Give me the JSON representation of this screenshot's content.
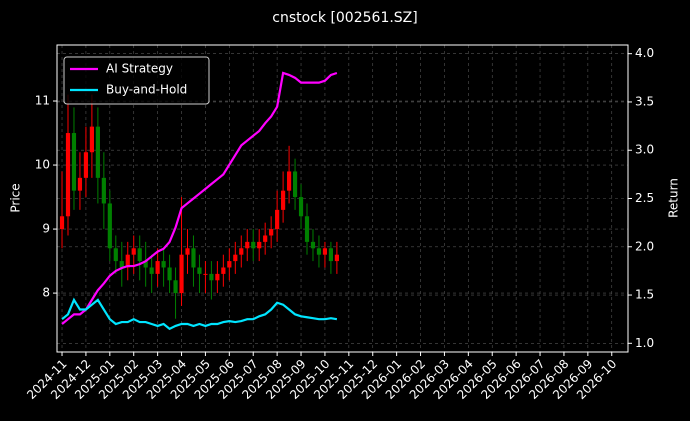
{
  "chart_data": {
    "type": "candlestick",
    "title": "cnstock [002561.SZ]",
    "ylabel": "Price",
    "y2label": "Return",
    "x": [
      0,
      0.25,
      0.5,
      0.75,
      1,
      1.25,
      1.5,
      1.75,
      2,
      2.25,
      2.5,
      2.75,
      3,
      3.25,
      3.5,
      3.75,
      4,
      4.25,
      4.5,
      4.75,
      5,
      5.25,
      5.5,
      5.75,
      6,
      6.25,
      6.5,
      6.75,
      7,
      7.25,
      7.5,
      7.75,
      8,
      8.25,
      8.5,
      8.75,
      9,
      9.25,
      9.5,
      9.75,
      10,
      10.25,
      10.5,
      10.75,
      11,
      11.25,
      11.5
    ],
    "open": [
      9.0,
      9.2,
      10.5,
      9.6,
      9.8,
      10.2,
      10.6,
      9.8,
      9.4,
      8.7,
      8.5,
      8.4,
      8.6,
      8.7,
      8.5,
      8.4,
      8.3,
      8.5,
      8.4,
      8.2,
      8.0,
      8.6,
      8.7,
      8.4,
      8.3,
      8.3,
      8.2,
      8.3,
      8.4,
      8.5,
      8.6,
      8.7,
      8.8,
      8.7,
      8.8,
      8.9,
      9.0,
      9.3,
      9.6,
      9.9,
      9.5,
      9.2,
      8.8,
      8.7,
      8.6,
      8.7,
      8.5
    ],
    "high": [
      9.9,
      11.1,
      10.9,
      10.2,
      10.6,
      11.1,
      10.9,
      10.2,
      9.6,
      8.9,
      8.8,
      8.8,
      8.9,
      8.9,
      8.8,
      8.6,
      8.7,
      8.7,
      8.6,
      8.4,
      9.5,
      9.0,
      8.9,
      8.6,
      8.5,
      8.5,
      8.5,
      8.6,
      8.7,
      8.8,
      8.9,
      9.0,
      9.0,
      9.0,
      9.1,
      9.2,
      9.6,
      9.9,
      10.3,
      10.1,
      9.7,
      9.4,
      9.0,
      8.9,
      8.8,
      8.8,
      8.8
    ],
    "low": [
      8.7,
      8.9,
      9.3,
      9.3,
      9.5,
      9.8,
      9.4,
      9.0,
      8.5,
      8.3,
      8.1,
      8.2,
      8.3,
      8.2,
      8.1,
      8.0,
      8.1,
      8.1,
      8.0,
      7.6,
      7.8,
      8.3,
      8.1,
      8.0,
      8.0,
      7.9,
      8.0,
      8.1,
      8.2,
      8.3,
      8.4,
      8.5,
      8.5,
      8.5,
      8.6,
      8.7,
      8.8,
      9.1,
      9.4,
      9.3,
      9.0,
      8.6,
      8.5,
      8.4,
      8.4,
      8.3,
      8.3
    ],
    "close": [
      9.2,
      10.5,
      9.6,
      9.8,
      10.2,
      10.6,
      9.8,
      9.4,
      8.7,
      8.5,
      8.4,
      8.6,
      8.7,
      8.5,
      8.4,
      8.3,
      8.5,
      8.4,
      8.2,
      8.0,
      8.6,
      8.7,
      8.4,
      8.3,
      8.3,
      8.2,
      8.3,
      8.4,
      8.5,
      8.6,
      8.7,
      8.8,
      8.7,
      8.8,
      8.9,
      9.0,
      9.3,
      9.6,
      9.9,
      9.5,
      9.2,
      8.8,
      8.7,
      8.6,
      8.7,
      8.5,
      8.6
    ],
    "up_color": "#ff0000",
    "down_color": "#008000",
    "series": [
      {
        "name": "AI Strategy",
        "color": "#ff00ff",
        "axis": "y2",
        "values": [
          1.2,
          1.25,
          1.3,
          1.3,
          1.35,
          1.45,
          1.55,
          1.62,
          1.7,
          1.75,
          1.78,
          1.8,
          1.8,
          1.82,
          1.85,
          1.9,
          1.95,
          1.98,
          2.05,
          2.2,
          2.4,
          2.45,
          2.5,
          2.55,
          2.6,
          2.65,
          2.7,
          2.75,
          2.85,
          2.95,
          3.05,
          3.1,
          3.15,
          3.2,
          3.28,
          3.35,
          3.45,
          3.8,
          3.78,
          3.75,
          3.7,
          3.7,
          3.7,
          3.7,
          3.72,
          3.78,
          3.8
        ]
      },
      {
        "name": "Buy-and-Hold",
        "color": "#00e5ff",
        "axis": "y2",
        "values": [
          1.25,
          1.3,
          1.45,
          1.35,
          1.35,
          1.4,
          1.45,
          1.35,
          1.25,
          1.2,
          1.22,
          1.22,
          1.25,
          1.22,
          1.22,
          1.2,
          1.18,
          1.2,
          1.15,
          1.18,
          1.2,
          1.2,
          1.18,
          1.2,
          1.18,
          1.2,
          1.2,
          1.22,
          1.23,
          1.22,
          1.23,
          1.25,
          1.25,
          1.28,
          1.3,
          1.35,
          1.42,
          1.4,
          1.35,
          1.3,
          1.28,
          1.27,
          1.26,
          1.25,
          1.25,
          1.26,
          1.25
        ]
      }
    ],
    "xlim": [
      -0.21,
      23.68
    ],
    "xticks": [
      {
        "value": 0,
        "label": "2024-11"
      },
      {
        "value": 1,
        "label": "2024-12"
      },
      {
        "value": 2,
        "label": "2025-01"
      },
      {
        "value": 3,
        "label": "2025-02"
      },
      {
        "value": 4,
        "label": "2025-03"
      },
      {
        "value": 5,
        "label": "2025-04"
      },
      {
        "value": 6,
        "label": "2025-05"
      },
      {
        "value": 7,
        "label": "2025-06"
      },
      {
        "value": 8,
        "label": "2025-07"
      },
      {
        "value": 9,
        "label": "2025-08"
      },
      {
        "value": 10,
        "label": "2025-09"
      },
      {
        "value": 11,
        "label": "2025-10"
      },
      {
        "value": 12,
        "label": "2025-11"
      },
      {
        "value": 13,
        "label": "2025-12"
      },
      {
        "value": 14,
        "label": "2026-01"
      },
      {
        "value": 15,
        "label": "2026-02"
      },
      {
        "value": 16,
        "label": "2026-03"
      },
      {
        "value": 17,
        "label": "2026-04"
      },
      {
        "value": 18,
        "label": "2026-05"
      },
      {
        "value": 19,
        "label": "2026-06"
      },
      {
        "value": 20,
        "label": "2026-07"
      },
      {
        "value": 21,
        "label": "2026-08"
      },
      {
        "value": 22,
        "label": "2026-09"
      },
      {
        "value": 23,
        "label": "2026-10"
      }
    ],
    "ylim": [
      7.08,
      11.875
    ],
    "yticks": [
      8,
      9,
      10,
      11
    ],
    "y2lim": [
      0.91,
      4.09
    ],
    "y2ticks": [
      {
        "value": 1.0,
        "label": "1.0"
      },
      1.5,
      {
        "value": 2.0,
        "label": "2.0"
      },
      2.5,
      {
        "value": 3.0,
        "label": "3.0"
      },
      3.5,
      {
        "value": 4.0,
        "label": "4.0"
      }
    ],
    "grid": true,
    "legend": "upper left"
  }
}
